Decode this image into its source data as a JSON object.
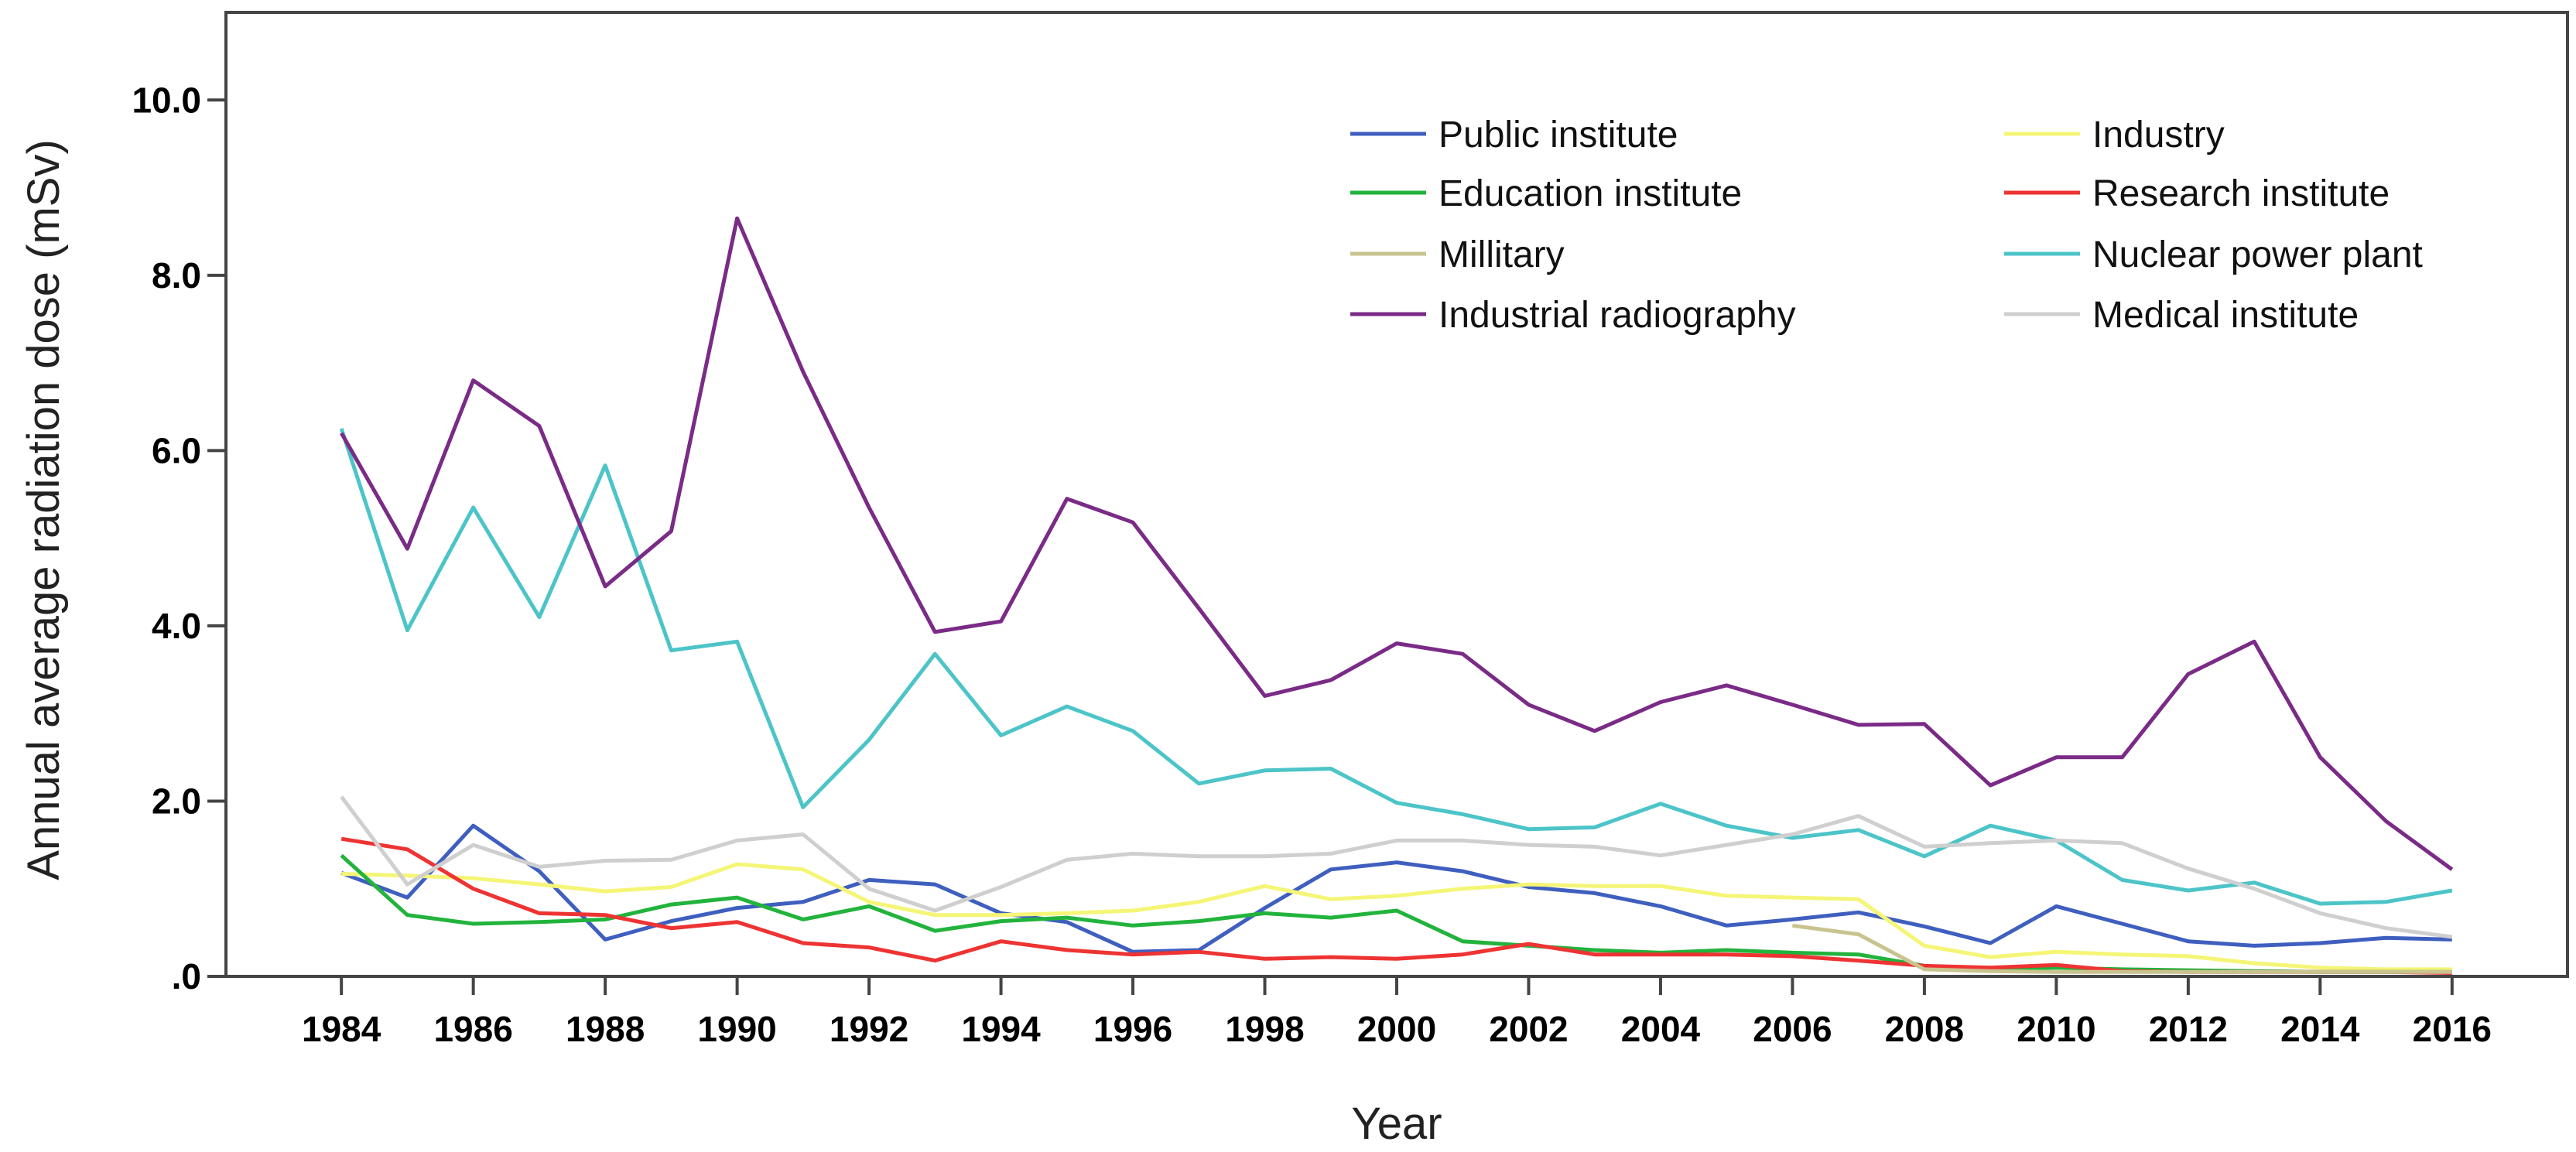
{
  "chart_data": {
    "type": "line",
    "title": "",
    "xlabel": "Year",
    "ylabel": "Annual average radiation dose (mSv)",
    "xlim": [
      1982.25,
      2017.75
    ],
    "ylim": [
      0,
      11.0
    ],
    "x_ticks": [
      1984,
      1986,
      1988,
      1990,
      1992,
      1994,
      1996,
      1998,
      2000,
      2002,
      2004,
      2006,
      2008,
      2010,
      2012,
      2014,
      2016
    ],
    "x_tick_labels": [
      "1984",
      "1986",
      "1988",
      "1990",
      "1992",
      "1994",
      "1996",
      "1998",
      "2000",
      "2002",
      "2004",
      "2006",
      "2008",
      "2010",
      "2012",
      "2014",
      "2016"
    ],
    "y_ticks": [
      0,
      2,
      4,
      6,
      8,
      10
    ],
    "y_tick_labels": [
      ".0",
      "2.0",
      "4.0",
      "6.0",
      "8.0",
      "10.0"
    ],
    "grid": false,
    "legend_position": "top-right",
    "series": [
      {
        "name": "Public institute",
        "color": "#3f5fbf",
        "start": 1984,
        "values": [
          1.18,
          0.9,
          1.72,
          1.2,
          0.42,
          0.63,
          0.78,
          0.85,
          1.1,
          1.05,
          0.72,
          0.62,
          0.28,
          0.3,
          0.78,
          1.22,
          1.3,
          1.2,
          1.02,
          0.95,
          0.8,
          0.58,
          0.65,
          0.73,
          0.57,
          0.38,
          0.8,
          0.6,
          0.4,
          0.35,
          0.38,
          0.44,
          0.42
        ]
      },
      {
        "name": "Industry",
        "color": "#f5f576",
        "start": 1984,
        "values": [
          1.17,
          1.15,
          1.12,
          1.05,
          0.97,
          1.02,
          1.28,
          1.22,
          0.85,
          0.7,
          0.7,
          0.72,
          0.75,
          0.85,
          1.03,
          0.88,
          0.92,
          1.0,
          1.05,
          1.03,
          1.03,
          0.92,
          0.9,
          0.88,
          0.35,
          0.22,
          0.28,
          0.25,
          0.23,
          0.15,
          0.1,
          0.08,
          0.08
        ]
      },
      {
        "name": "Education institute",
        "color": "#22b33c",
        "start": 1984,
        "values": [
          1.38,
          0.7,
          0.6,
          0.62,
          0.65,
          0.82,
          0.9,
          0.65,
          0.8,
          0.52,
          0.63,
          0.67,
          0.58,
          0.63,
          0.72,
          0.67,
          0.75,
          0.4,
          0.35,
          0.3,
          0.27,
          0.3,
          0.27,
          0.25,
          0.12,
          0.08,
          0.1,
          0.08,
          0.07,
          0.06,
          0.05,
          0.05,
          0.05
        ]
      },
      {
        "name": "Research institute",
        "color": "#ee3333",
        "start": 1984,
        "values": [
          1.57,
          1.45,
          1.0,
          0.72,
          0.7,
          0.55,
          0.62,
          0.38,
          0.33,
          0.18,
          0.4,
          0.3,
          0.25,
          0.28,
          0.2,
          0.22,
          0.2,
          0.25,
          0.37,
          0.25,
          0.25,
          0.25,
          0.23,
          0.18,
          0.12,
          0.1,
          0.13,
          0.06,
          0.05,
          0.05,
          0.05,
          0.05,
          0.04
        ]
      },
      {
        "name": "Millitary",
        "color": "#c9c48f",
        "start": 2006,
        "values": [
          0.58,
          0.48,
          0.08,
          0.06,
          0.05,
          0.05,
          0.05,
          0.05,
          0.05,
          0.05,
          0.05
        ]
      },
      {
        "name": "Nuclear power plant",
        "color": "#4cc4c8",
        "start": 1984,
        "values": [
          6.25,
          3.95,
          5.35,
          4.1,
          5.83,
          3.72,
          3.82,
          1.93,
          2.7,
          3.68,
          2.75,
          3.08,
          2.8,
          2.2,
          2.35,
          2.37,
          1.98,
          1.85,
          1.68,
          1.7,
          1.97,
          1.72,
          1.58,
          1.67,
          1.37,
          1.72,
          1.55,
          1.1,
          0.98,
          1.07,
          0.83,
          0.85,
          0.98
        ]
      },
      {
        "name": "Industrial radiography",
        "color": "#7a2b86",
        "start": 1984,
        "values": [
          6.2,
          4.88,
          6.8,
          6.28,
          4.45,
          5.08,
          8.65,
          6.9,
          5.35,
          3.93,
          4.05,
          5.45,
          5.18,
          4.2,
          3.2,
          3.38,
          3.8,
          3.68,
          3.1,
          2.8,
          3.13,
          3.32,
          3.1,
          2.87,
          2.88,
          2.18,
          2.5,
          2.5,
          3.45,
          3.82,
          2.5,
          1.77,
          1.22
        ]
      },
      {
        "name": "Medical institute",
        "color": "#cfcfcf",
        "start": 1984,
        "values": [
          2.05,
          1.05,
          1.5,
          1.25,
          1.32,
          1.33,
          1.55,
          1.62,
          1.0,
          0.75,
          1.02,
          1.33,
          1.4,
          1.37,
          1.37,
          1.4,
          1.55,
          1.55,
          1.5,
          1.48,
          1.38,
          1.5,
          1.62,
          1.83,
          1.48,
          1.52,
          1.55,
          1.52,
          1.23,
          1.0,
          0.72,
          0.55,
          0.45
        ]
      }
    ]
  }
}
